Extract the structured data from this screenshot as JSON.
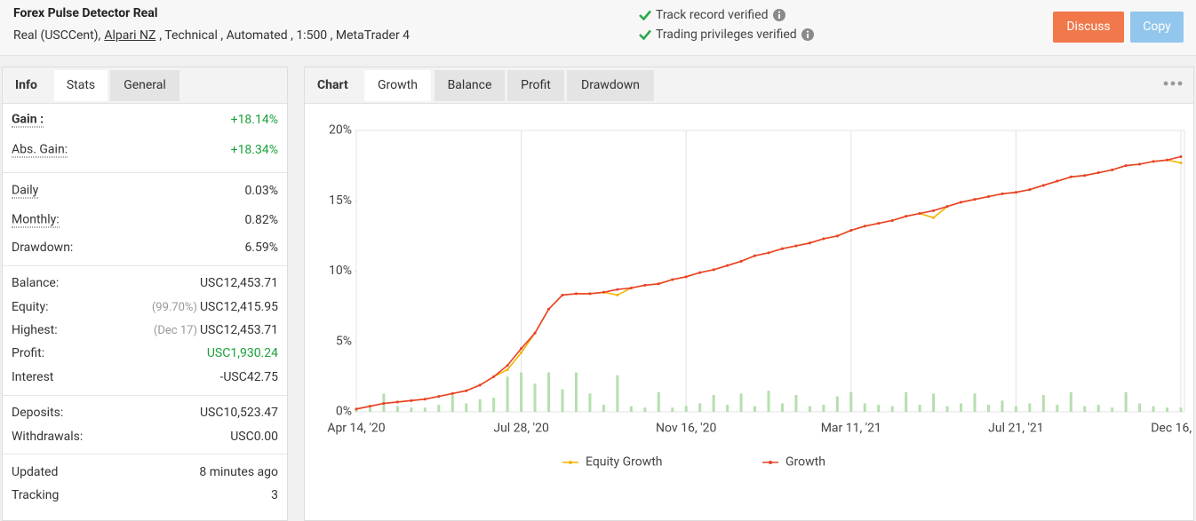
{
  "header": {
    "title": "Forex Pulse Detector Real",
    "account_type": "Real (USCCent),",
    "broker": "Alpari NZ",
    "details": ", Technical , Automated , 1:500 , MetaTrader 4",
    "verifications": [
      "Track record verified",
      "Trading privileges verified"
    ],
    "buttons": [
      "Discuss",
      "Copy"
    ]
  },
  "stats_panel": {
    "label": "Info",
    "tabs": [
      "Stats",
      "General"
    ],
    "active_tab": 0,
    "groups": [
      [
        {
          "label": "Gain :",
          "value": "+18.14%",
          "underline": true,
          "bold": true,
          "positive": true
        },
        {
          "label": "Abs. Gain:",
          "value": "+18.34%",
          "underline": true,
          "positive": true
        }
      ],
      [
        {
          "label": "Daily",
          "value": "0.03%",
          "underline": true
        },
        {
          "label": "Monthly:",
          "value": "0.82%",
          "underline": true
        },
        {
          "label": "Drawdown:",
          "value": "6.59%"
        }
      ],
      [
        {
          "label": "Balance:",
          "value": "USC12,453.71"
        },
        {
          "label": "Equity:",
          "note": "(99.70%)",
          "value": "USC12,415.95"
        },
        {
          "label": "Highest:",
          "note": "(Dec 17)",
          "value": "USC12,453.71"
        },
        {
          "label": "Profit:",
          "value": "USC1,930.24",
          "positive": true
        },
        {
          "label": "Interest",
          "value": "-USC42.75"
        }
      ],
      [
        {
          "label": "Deposits:",
          "value": "USC10,523.47"
        },
        {
          "label": "Withdrawals:",
          "value": "USC0.00"
        }
      ],
      [
        {
          "label": "Updated",
          "value": "8 minutes ago"
        },
        {
          "label": "Tracking",
          "value": "3"
        }
      ]
    ]
  },
  "chart_panel": {
    "label": "Chart",
    "tabs": [
      "Growth",
      "Balance",
      "Profit",
      "Drawdown"
    ],
    "active_tab": 0
  },
  "chart_data": {
    "type": "line",
    "categories": [
      "Apr 14, '20",
      null,
      null,
      null,
      null,
      null,
      null,
      null,
      null,
      null,
      null,
      null,
      "Jul 28, '20",
      null,
      null,
      null,
      null,
      null,
      null,
      null,
      null,
      null,
      null,
      null,
      "Nov 16, '20",
      null,
      null,
      null,
      null,
      null,
      null,
      null,
      null,
      null,
      null,
      null,
      "Mar 11, '21",
      null,
      null,
      null,
      null,
      null,
      null,
      null,
      null,
      null,
      null,
      null,
      "Jul 21, '21",
      null,
      null,
      null,
      null,
      null,
      null,
      null,
      null,
      null,
      null,
      null,
      "Dec 16, '21"
    ],
    "series": [
      {
        "name": "Equity Growth",
        "color": "#f4b400",
        "values": [
          0.2,
          0.4,
          0.6,
          0.7,
          0.8,
          0.9,
          1.1,
          1.3,
          1.5,
          1.9,
          2.5,
          3.0,
          4.2,
          5.6,
          7.3,
          8.3,
          8.4,
          8.4,
          8.5,
          8.3,
          8.8,
          9.0,
          9.1,
          9.4,
          9.6,
          9.9,
          10.1,
          10.4,
          10.7,
          11.1,
          11.3,
          11.6,
          11.8,
          12.0,
          12.3,
          12.5,
          12.9,
          13.2,
          13.4,
          13.6,
          13.9,
          14.1,
          13.8,
          14.6,
          14.9,
          15.1,
          15.3,
          15.5,
          15.6,
          15.8,
          16.1,
          16.4,
          16.7,
          16.8,
          17.0,
          17.2,
          17.5,
          17.6,
          17.8,
          17.9,
          17.7
        ]
      },
      {
        "name": "Growth",
        "color": "#e8412c",
        "values": [
          0.2,
          0.4,
          0.6,
          0.7,
          0.8,
          0.9,
          1.1,
          1.3,
          1.5,
          1.9,
          2.5,
          3.3,
          4.5,
          5.6,
          7.3,
          8.3,
          8.4,
          8.4,
          8.5,
          8.7,
          8.8,
          9.0,
          9.1,
          9.4,
          9.6,
          9.9,
          10.1,
          10.4,
          10.7,
          11.1,
          11.3,
          11.6,
          11.8,
          12.0,
          12.3,
          12.5,
          12.9,
          13.2,
          13.4,
          13.6,
          13.9,
          14.1,
          14.3,
          14.6,
          14.9,
          15.1,
          15.3,
          15.5,
          15.6,
          15.8,
          16.1,
          16.4,
          16.7,
          16.8,
          17.0,
          17.2,
          17.5,
          17.6,
          17.8,
          17.9,
          18.14
        ]
      },
      {
        "kind": "bar",
        "color": "#b5dfae",
        "values": [
          0.2,
          0.3,
          1.3,
          0.4,
          0.3,
          0.3,
          0.5,
          1.2,
          0.6,
          0.9,
          1.0,
          2.5,
          2.8,
          2.0,
          2.8,
          1.6,
          2.8,
          1.3,
          0.5,
          2.6,
          0.4,
          0.3,
          1.4,
          0.3,
          0.4,
          0.6,
          1.2,
          0.5,
          1.3,
          0.4,
          1.5,
          0.6,
          1.2,
          0.4,
          0.5,
          1.1,
          1.4,
          0.6,
          0.5,
          0.4,
          1.4,
          0.5,
          1.3,
          0.4,
          0.6,
          1.3,
          0.5,
          0.8,
          0.4,
          0.6,
          1.2,
          0.5,
          1.4,
          0.4,
          0.5,
          0.3,
          1.4,
          0.6,
          0.4,
          0.3,
          0.3
        ]
      }
    ],
    "ylim": [
      0,
      20
    ],
    "yticks": [
      {
        "value": 0,
        "label": "0%"
      },
      {
        "value": 5,
        "label": "5%"
      },
      {
        "value": 10,
        "label": "10%"
      },
      {
        "value": 15,
        "label": "15%"
      },
      {
        "value": 20,
        "label": "20%"
      }
    ],
    "grid": "x",
    "legend": "bottom"
  }
}
